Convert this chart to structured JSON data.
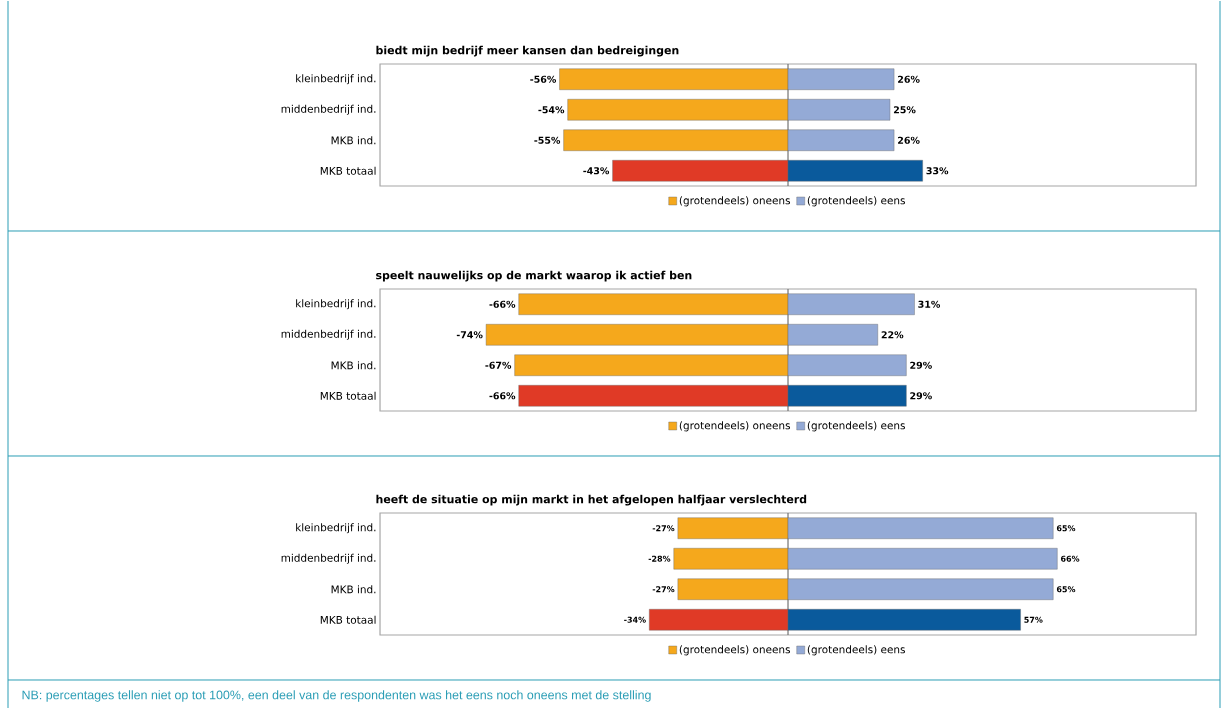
{
  "chart_data": [
    {
      "type": "bar",
      "orientation": "horizontal",
      "title": "biedt mijn bedrijf meer kansen dan bedreigingen",
      "categories": [
        "kleinbedrijf ind.",
        "middenbedrijf ind.",
        "MKB ind.",
        "MKB totaal"
      ],
      "xlim": [
        -100,
        100
      ],
      "tick_labels": "y",
      "legend": "bottom",
      "stacked": true,
      "series": [
        {
          "name": "(grotendeels) oneens",
          "color": "#f5a81c",
          "colors": [
            "#f5a81c",
            "#f5a81c",
            "#f5a81c",
            "#e03a26"
          ],
          "values": [
            -56,
            -54,
            -55,
            -43
          ],
          "value_labels": [
            "-56%",
            "-54%",
            "-55%",
            "-43%"
          ]
        },
        {
          "name": "(grotendeels) eens",
          "color": "#94aad6",
          "colors": [
            "#94aad6",
            "#94aad6",
            "#94aad6",
            "#0a5a9c"
          ],
          "values": [
            26,
            25,
            26,
            33
          ],
          "value_labels": [
            "26%",
            "25%",
            "26%",
            "33%"
          ]
        }
      ]
    },
    {
      "type": "bar",
      "orientation": "horizontal",
      "title": "speelt nauwelijks op de markt waarop ik actief ben",
      "categories": [
        "kleinbedrijf ind.",
        "middenbedrijf ind.",
        "MKB ind.",
        "MKB totaal"
      ],
      "xlim": [
        -100,
        100
      ],
      "tick_labels": "y",
      "legend": "bottom",
      "stacked": true,
      "series": [
        {
          "name": "(grotendeels) oneens",
          "color": "#f5a81c",
          "colors": [
            "#f5a81c",
            "#f5a81c",
            "#f5a81c",
            "#e03a26"
          ],
          "values": [
            -66,
            -74,
            -67,
            -66
          ],
          "value_labels": [
            "-66%",
            "-74%",
            "-67%",
            "-66%"
          ]
        },
        {
          "name": "(grotendeels) eens",
          "color": "#94aad6",
          "colors": [
            "#94aad6",
            "#94aad6",
            "#94aad6",
            "#0a5a9c"
          ],
          "values": [
            31,
            22,
            29,
            29
          ],
          "value_labels": [
            "31%",
            "22%",
            "29%",
            "29%"
          ]
        }
      ]
    },
    {
      "type": "bar",
      "orientation": "horizontal",
      "title": "heeft de situatie op mijn markt in het afgelopen halfjaar verslechterd",
      "categories": [
        "kleinbedrijf ind.",
        "middenbedrijf ind.",
        "MKB ind.",
        "MKB totaal"
      ],
      "xlim": [
        -100,
        100
      ],
      "tick_labels": "y",
      "legend": "bottom",
      "stacked": true,
      "series": [
        {
          "name": "(grotendeels) oneens",
          "color": "#f5a81c",
          "colors": [
            "#f5a81c",
            "#f5a81c",
            "#f5a81c",
            "#e03a26"
          ],
          "values": [
            -27,
            -28,
            -27,
            -34
          ],
          "value_labels": [
            "-27%",
            "-28%",
            "-27%",
            "-34%"
          ]
        },
        {
          "name": "(grotendeels) eens",
          "color": "#94aad6",
          "colors": [
            "#94aad6",
            "#94aad6",
            "#94aad6",
            "#0a5a9c"
          ],
          "values": [
            65,
            66,
            65,
            57
          ],
          "value_labels": [
            "65%",
            "66%",
            "65%",
            "57%"
          ]
        }
      ],
      "annotations": [
        "NB: percentages tellen niet op tot 100%, een deel van de respondenten was het eens noch oneens met de stelling"
      ]
    }
  ]
}
